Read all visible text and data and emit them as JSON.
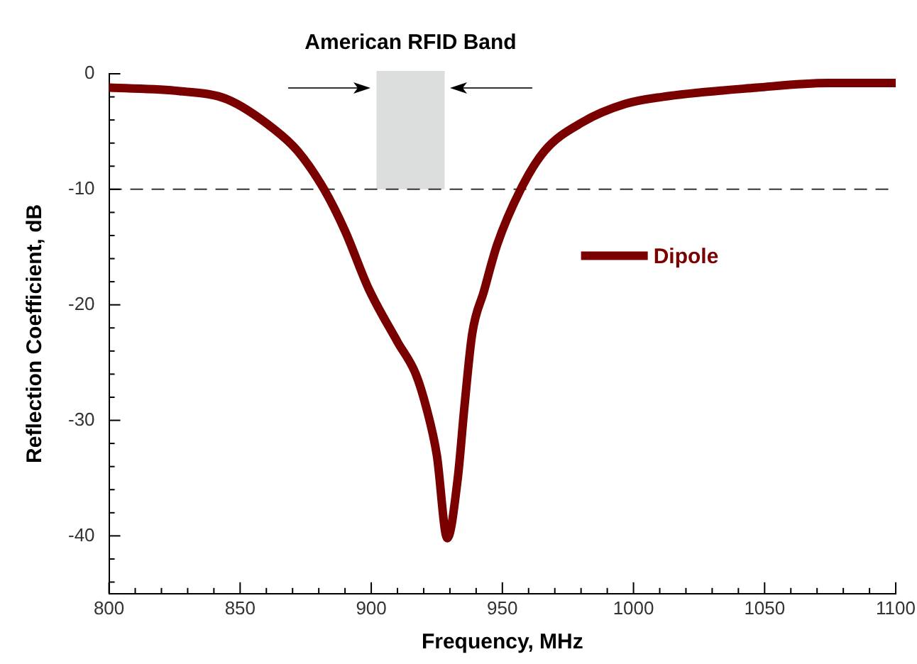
{
  "chart_data": {
    "type": "line",
    "xlabel": "Frequency, MHz",
    "ylabel": "Reflection Coefficient, dB",
    "xlim": [
      800,
      1100
    ],
    "xticks": [
      800,
      850,
      900,
      950,
      1000,
      1050,
      1100
    ],
    "ylim": [
      -45,
      0
    ],
    "yticks": [
      0,
      -10,
      -20,
      -30,
      -40
    ],
    "grid": false,
    "legend": "right",
    "marker": "none",
    "line_style": "solid",
    "series": [
      {
        "name": "Dipole",
        "color": "#7a0000",
        "x": [
          800,
          827,
          845,
          863,
          872,
          882,
          890,
          899,
          910,
          917,
          921,
          925,
          929,
          933,
          935.5,
          938.5,
          943,
          948,
          957,
          966,
          980.5,
          997,
          1011,
          1047,
          1074,
          1100
        ],
        "values": [
          -1.2,
          -1.5,
          -2.2,
          -4.8,
          -6.7,
          -10,
          -13.6,
          -18.6,
          -23.2,
          -26,
          -28.9,
          -33,
          -40.2,
          -35,
          -28.9,
          -22.5,
          -18.8,
          -14.8,
          -10,
          -6.7,
          -4.2,
          -2.6,
          -2,
          -1.2,
          -0.8,
          -0.8
        ]
      }
    ],
    "ref_lines": [
      {
        "axis": "y",
        "value": -10,
        "color": "#333333",
        "line_style": "dashed"
      }
    ],
    "bands": [
      {
        "axis": "x",
        "from": 902,
        "to": 928,
        "label": "American RFID Band",
        "color": "#dcdddd"
      }
    ]
  }
}
